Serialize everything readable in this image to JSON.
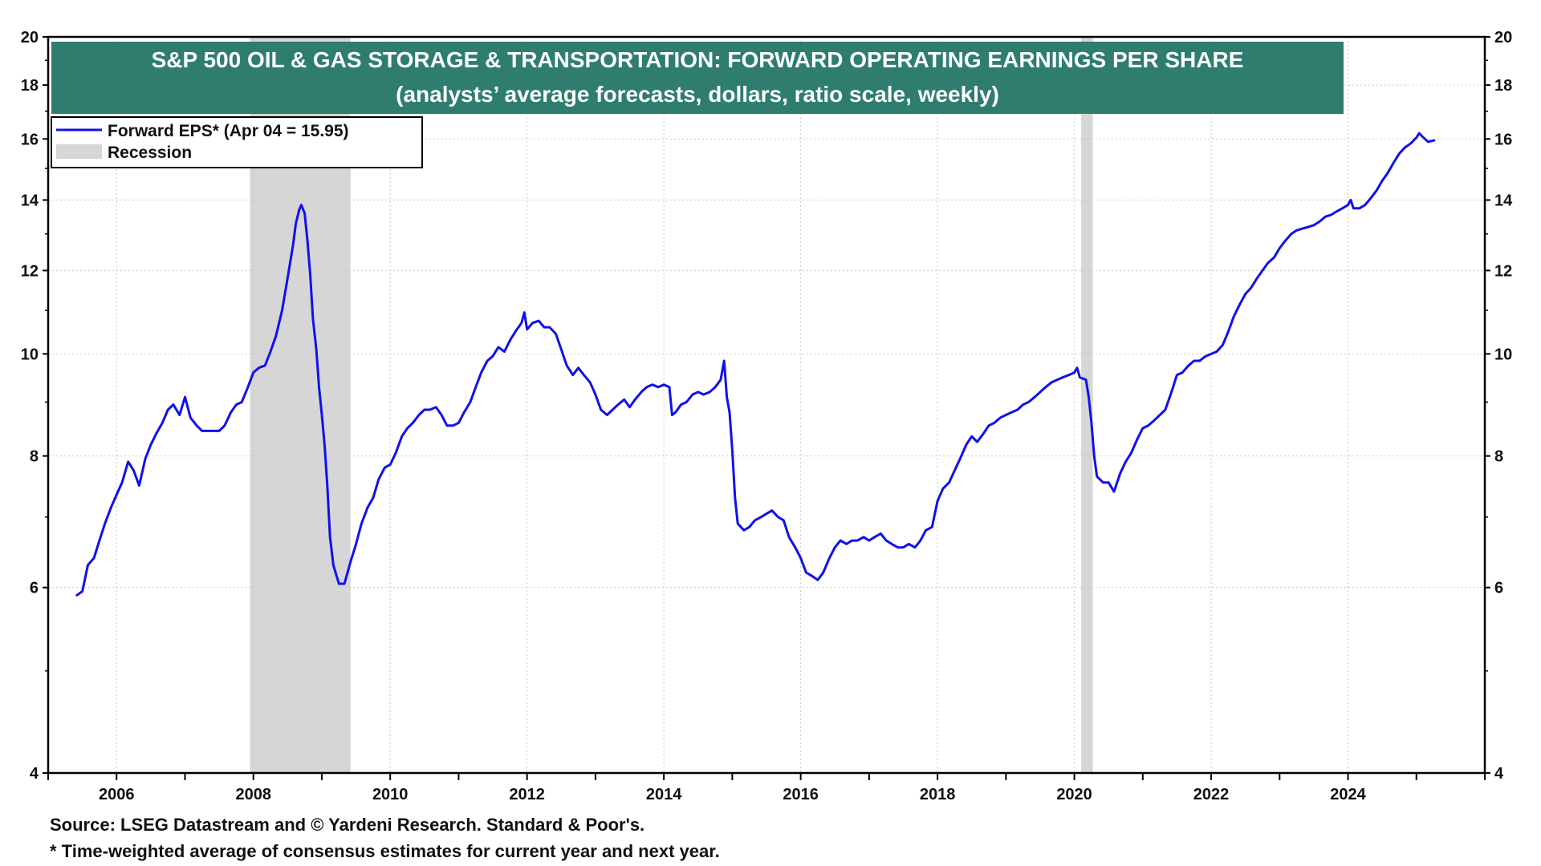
{
  "source": "Source: LSEG Datastream and © Yardeni Research. Standard & Poor's.",
  "footnote": "* Time-weighted average of consensus estimates for current year and next year.",
  "colors": {
    "title_bg": "#2e7d6e",
    "series": "#1010ee",
    "recession": "#d6d6d6",
    "grid": "#c8c8c8"
  },
  "chart_data": {
    "type": "line",
    "title": "S&P 500 OIL & GAS STORAGE & TRANSPORTATION: FORWARD OPERATING EARNINGS PER SHARE",
    "subtitle": "(analysts’ average forecasts, dollars, ratio scale, weekly)",
    "xlabel": "",
    "ylabel": "",
    "yscale": "log",
    "ylim": [
      4,
      20
    ],
    "xlim": [
      2005.0,
      2026.0
    ],
    "grid": true,
    "legend_position": "top-left",
    "y_ticks": [
      4,
      6,
      8,
      10,
      12,
      14,
      16,
      18,
      20
    ],
    "y_tick_labels": [
      "4",
      "6",
      "8",
      "10",
      "12",
      "14",
      "16",
      "18",
      "20"
    ],
    "x_ticks": [
      2006,
      2008,
      2010,
      2012,
      2014,
      2016,
      2018,
      2020,
      2022,
      2024
    ],
    "x_tick_labels": [
      "2006",
      "2008",
      "2010",
      "2012",
      "2014",
      "2016",
      "2018",
      "2020",
      "2022",
      "2024"
    ],
    "legend": {
      "series_label": "Forward EPS* (Apr 04 = 15.95)",
      "recession_label": "Recession"
    },
    "recessions": [
      {
        "start": 2007.95,
        "end": 2009.42
      },
      {
        "start": 2020.1,
        "end": 2020.27
      }
    ],
    "series": [
      {
        "name": "Forward EPS*",
        "points": [
          [
            2005.42,
            5.9
          ],
          [
            2005.5,
            5.95
          ],
          [
            2005.58,
            6.3
          ],
          [
            2005.67,
            6.4
          ],
          [
            2005.75,
            6.65
          ],
          [
            2005.83,
            6.9
          ],
          [
            2005.92,
            7.15
          ],
          [
            2006.0,
            7.35
          ],
          [
            2006.08,
            7.55
          ],
          [
            2006.17,
            7.9
          ],
          [
            2006.25,
            7.75
          ],
          [
            2006.33,
            7.5
          ],
          [
            2006.42,
            7.95
          ],
          [
            2006.5,
            8.2
          ],
          [
            2006.58,
            8.4
          ],
          [
            2006.67,
            8.6
          ],
          [
            2006.75,
            8.85
          ],
          [
            2006.83,
            8.95
          ],
          [
            2006.92,
            8.75
          ],
          [
            2007.0,
            9.1
          ],
          [
            2007.08,
            8.7
          ],
          [
            2007.17,
            8.55
          ],
          [
            2007.25,
            8.45
          ],
          [
            2007.33,
            8.45
          ],
          [
            2007.5,
            8.45
          ],
          [
            2007.58,
            8.55
          ],
          [
            2007.67,
            8.8
          ],
          [
            2007.75,
            8.95
          ],
          [
            2007.83,
            9.0
          ],
          [
            2007.92,
            9.3
          ],
          [
            2008.0,
            9.6
          ],
          [
            2008.08,
            9.7
          ],
          [
            2008.17,
            9.75
          ],
          [
            2008.25,
            10.05
          ],
          [
            2008.33,
            10.4
          ],
          [
            2008.42,
            11.0
          ],
          [
            2008.5,
            11.8
          ],
          [
            2008.58,
            12.7
          ],
          [
            2008.62,
            13.3
          ],
          [
            2008.67,
            13.7
          ],
          [
            2008.7,
            13.85
          ],
          [
            2008.75,
            13.6
          ],
          [
            2008.79,
            12.8
          ],
          [
            2008.83,
            11.9
          ],
          [
            2008.87,
            10.8
          ],
          [
            2008.92,
            10.1
          ],
          [
            2008.96,
            9.3
          ],
          [
            2009.0,
            8.75
          ],
          [
            2009.04,
            8.2
          ],
          [
            2009.08,
            7.5
          ],
          [
            2009.12,
            6.7
          ],
          [
            2009.17,
            6.3
          ],
          [
            2009.25,
            6.05
          ],
          [
            2009.33,
            6.05
          ],
          [
            2009.42,
            6.35
          ],
          [
            2009.5,
            6.6
          ],
          [
            2009.58,
            6.9
          ],
          [
            2009.67,
            7.15
          ],
          [
            2009.75,
            7.3
          ],
          [
            2009.83,
            7.6
          ],
          [
            2009.92,
            7.8
          ],
          [
            2010.0,
            7.85
          ],
          [
            2010.08,
            8.05
          ],
          [
            2010.17,
            8.35
          ],
          [
            2010.25,
            8.5
          ],
          [
            2010.33,
            8.6
          ],
          [
            2010.42,
            8.75
          ],
          [
            2010.5,
            8.85
          ],
          [
            2010.58,
            8.85
          ],
          [
            2010.67,
            8.9
          ],
          [
            2010.75,
            8.75
          ],
          [
            2010.83,
            8.55
          ],
          [
            2010.92,
            8.55
          ],
          [
            2011.0,
            8.6
          ],
          [
            2011.08,
            8.8
          ],
          [
            2011.17,
            9.0
          ],
          [
            2011.25,
            9.3
          ],
          [
            2011.33,
            9.6
          ],
          [
            2011.42,
            9.85
          ],
          [
            2011.5,
            9.95
          ],
          [
            2011.58,
            10.15
          ],
          [
            2011.67,
            10.05
          ],
          [
            2011.75,
            10.3
          ],
          [
            2011.83,
            10.5
          ],
          [
            2011.92,
            10.7
          ],
          [
            2011.96,
            10.95
          ],
          [
            2012.0,
            10.55
          ],
          [
            2012.08,
            10.7
          ],
          [
            2012.17,
            10.75
          ],
          [
            2012.25,
            10.6
          ],
          [
            2012.33,
            10.6
          ],
          [
            2012.42,
            10.45
          ],
          [
            2012.5,
            10.1
          ],
          [
            2012.58,
            9.75
          ],
          [
            2012.67,
            9.55
          ],
          [
            2012.75,
            9.7
          ],
          [
            2012.83,
            9.55
          ],
          [
            2012.92,
            9.4
          ],
          [
            2013.0,
            9.15
          ],
          [
            2013.08,
            8.85
          ],
          [
            2013.17,
            8.75
          ],
          [
            2013.25,
            8.85
          ],
          [
            2013.33,
            8.95
          ],
          [
            2013.42,
            9.05
          ],
          [
            2013.5,
            8.9
          ],
          [
            2013.58,
            9.05
          ],
          [
            2013.67,
            9.2
          ],
          [
            2013.75,
            9.3
          ],
          [
            2013.83,
            9.35
          ],
          [
            2013.92,
            9.3
          ],
          [
            2014.0,
            9.35
          ],
          [
            2014.08,
            9.3
          ],
          [
            2014.12,
            8.75
          ],
          [
            2014.17,
            8.8
          ],
          [
            2014.25,
            8.95
          ],
          [
            2014.33,
            9.0
          ],
          [
            2014.42,
            9.15
          ],
          [
            2014.5,
            9.2
          ],
          [
            2014.58,
            9.15
          ],
          [
            2014.67,
            9.2
          ],
          [
            2014.75,
            9.3
          ],
          [
            2014.83,
            9.45
          ],
          [
            2014.88,
            9.85
          ],
          [
            2014.92,
            9.1
          ],
          [
            2014.96,
            8.8
          ],
          [
            2015.0,
            8.1
          ],
          [
            2015.04,
            7.3
          ],
          [
            2015.08,
            6.9
          ],
          [
            2015.17,
            6.8
          ],
          [
            2015.25,
            6.85
          ],
          [
            2015.33,
            6.95
          ],
          [
            2015.42,
            7.0
          ],
          [
            2015.5,
            7.05
          ],
          [
            2015.58,
            7.1
          ],
          [
            2015.67,
            7.0
          ],
          [
            2015.75,
            6.95
          ],
          [
            2015.83,
            6.7
          ],
          [
            2015.92,
            6.55
          ],
          [
            2016.0,
            6.4
          ],
          [
            2016.08,
            6.2
          ],
          [
            2016.17,
            6.15
          ],
          [
            2016.25,
            6.1
          ],
          [
            2016.33,
            6.2
          ],
          [
            2016.42,
            6.4
          ],
          [
            2016.5,
            6.55
          ],
          [
            2016.58,
            6.65
          ],
          [
            2016.67,
            6.6
          ],
          [
            2016.75,
            6.65
          ],
          [
            2016.83,
            6.65
          ],
          [
            2016.92,
            6.7
          ],
          [
            2017.0,
            6.65
          ],
          [
            2017.08,
            6.7
          ],
          [
            2017.17,
            6.75
          ],
          [
            2017.25,
            6.65
          ],
          [
            2017.33,
            6.6
          ],
          [
            2017.42,
            6.55
          ],
          [
            2017.5,
            6.55
          ],
          [
            2017.58,
            6.6
          ],
          [
            2017.67,
            6.55
          ],
          [
            2017.75,
            6.65
          ],
          [
            2017.83,
            6.8
          ],
          [
            2017.92,
            6.85
          ],
          [
            2018.0,
            7.25
          ],
          [
            2018.08,
            7.45
          ],
          [
            2018.17,
            7.55
          ],
          [
            2018.25,
            7.75
          ],
          [
            2018.33,
            7.95
          ],
          [
            2018.42,
            8.2
          ],
          [
            2018.5,
            8.35
          ],
          [
            2018.58,
            8.25
          ],
          [
            2018.67,
            8.4
          ],
          [
            2018.75,
            8.55
          ],
          [
            2018.83,
            8.6
          ],
          [
            2018.92,
            8.7
          ],
          [
            2019.0,
            8.75
          ],
          [
            2019.08,
            8.8
          ],
          [
            2019.17,
            8.85
          ],
          [
            2019.25,
            8.95
          ],
          [
            2019.33,
            9.0
          ],
          [
            2019.42,
            9.1
          ],
          [
            2019.5,
            9.2
          ],
          [
            2019.58,
            9.3
          ],
          [
            2019.67,
            9.4
          ],
          [
            2019.75,
            9.45
          ],
          [
            2019.83,
            9.5
          ],
          [
            2019.92,
            9.55
          ],
          [
            2020.0,
            9.6
          ],
          [
            2020.04,
            9.7
          ],
          [
            2020.08,
            9.5
          ],
          [
            2020.17,
            9.45
          ],
          [
            2020.21,
            9.1
          ],
          [
            2020.25,
            8.6
          ],
          [
            2020.29,
            8.0
          ],
          [
            2020.33,
            7.65
          ],
          [
            2020.42,
            7.55
          ],
          [
            2020.5,
            7.55
          ],
          [
            2020.58,
            7.4
          ],
          [
            2020.67,
            7.7
          ],
          [
            2020.75,
            7.9
          ],
          [
            2020.83,
            8.05
          ],
          [
            2020.92,
            8.3
          ],
          [
            2021.0,
            8.5
          ],
          [
            2021.08,
            8.55
          ],
          [
            2021.17,
            8.65
          ],
          [
            2021.25,
            8.75
          ],
          [
            2021.33,
            8.85
          ],
          [
            2021.42,
            9.2
          ],
          [
            2021.5,
            9.55
          ],
          [
            2021.58,
            9.6
          ],
          [
            2021.67,
            9.75
          ],
          [
            2021.75,
            9.85
          ],
          [
            2021.83,
            9.85
          ],
          [
            2021.92,
            9.95
          ],
          [
            2022.0,
            10.0
          ],
          [
            2022.08,
            10.05
          ],
          [
            2022.17,
            10.2
          ],
          [
            2022.25,
            10.5
          ],
          [
            2022.33,
            10.85
          ],
          [
            2022.42,
            11.15
          ],
          [
            2022.5,
            11.4
          ],
          [
            2022.58,
            11.55
          ],
          [
            2022.67,
            11.8
          ],
          [
            2022.75,
            12.0
          ],
          [
            2022.83,
            12.2
          ],
          [
            2022.92,
            12.35
          ],
          [
            2023.0,
            12.6
          ],
          [
            2023.08,
            12.8
          ],
          [
            2023.17,
            13.0
          ],
          [
            2023.25,
            13.1
          ],
          [
            2023.33,
            13.15
          ],
          [
            2023.42,
            13.2
          ],
          [
            2023.5,
            13.25
          ],
          [
            2023.58,
            13.35
          ],
          [
            2023.67,
            13.5
          ],
          [
            2023.75,
            13.55
          ],
          [
            2023.83,
            13.65
          ],
          [
            2023.92,
            13.75
          ],
          [
            2024.0,
            13.85
          ],
          [
            2024.04,
            14.0
          ],
          [
            2024.08,
            13.75
          ],
          [
            2024.17,
            13.75
          ],
          [
            2024.25,
            13.85
          ],
          [
            2024.33,
            14.05
          ],
          [
            2024.42,
            14.3
          ],
          [
            2024.5,
            14.6
          ],
          [
            2024.58,
            14.85
          ],
          [
            2024.67,
            15.2
          ],
          [
            2024.75,
            15.5
          ],
          [
            2024.83,
            15.7
          ],
          [
            2024.92,
            15.85
          ],
          [
            2025.0,
            16.05
          ],
          [
            2025.04,
            16.2
          ],
          [
            2025.08,
            16.1
          ],
          [
            2025.17,
            15.9
          ],
          [
            2025.26,
            15.95
          ]
        ]
      }
    ]
  }
}
